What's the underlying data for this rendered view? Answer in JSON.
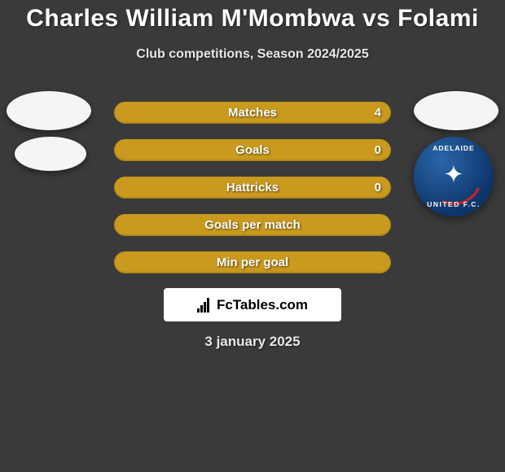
{
  "title": "Charles William M'Mombwa vs Folami",
  "subtitle": "Club competitions, Season 2024/2025",
  "bars": [
    {
      "label": "Matches",
      "value": "4",
      "color": "#c99a1e"
    },
    {
      "label": "Goals",
      "value": "0",
      "color": "#c99a1e"
    },
    {
      "label": "Hattricks",
      "value": "0",
      "color": "#c99a1e"
    },
    {
      "label": "Goals per match",
      "value": "",
      "color": "#c99a1e"
    },
    {
      "label": "Min per goal",
      "value": "",
      "color": "#c99a1e"
    }
  ],
  "avatar_left": {
    "ellipse_color": "#f5f5f5"
  },
  "avatar_right": {
    "ellipse_color": "#f5f5f5",
    "crest_top": "ADELAIDE",
    "crest_bottom": "UNITED F.C.",
    "crest_bg_outer": "#0d356b",
    "crest_bg_inner": "#2b66a8",
    "crest_accent": "#d22027"
  },
  "logo": {
    "text": "FcTables.com"
  },
  "date": "3 january 2025",
  "colors": {
    "page_bg": "#3a3a3a",
    "text_primary": "#ffffff",
    "text_secondary": "#e8e8e8"
  }
}
